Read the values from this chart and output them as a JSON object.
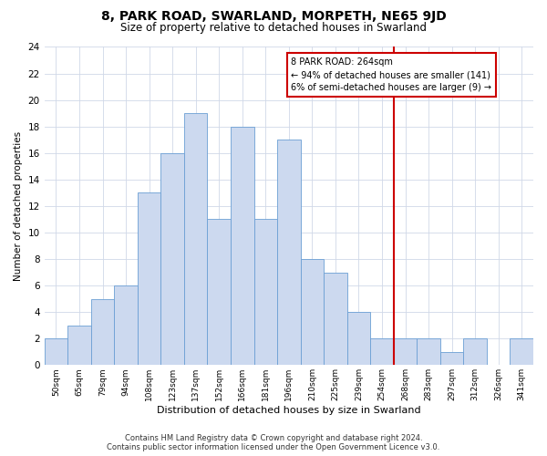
{
  "title": "8, PARK ROAD, SWARLAND, MORPETH, NE65 9JD",
  "subtitle": "Size of property relative to detached houses in Swarland",
  "xlabel": "Distribution of detached houses by size in Swarland",
  "ylabel": "Number of detached properties",
  "categories": [
    "50sqm",
    "65sqm",
    "79sqm",
    "94sqm",
    "108sqm",
    "123sqm",
    "137sqm",
    "152sqm",
    "166sqm",
    "181sqm",
    "196sqm",
    "210sqm",
    "225sqm",
    "239sqm",
    "254sqm",
    "268sqm",
    "283sqm",
    "297sqm",
    "312sqm",
    "326sqm",
    "341sqm"
  ],
  "bar_values": [
    2,
    3,
    5,
    6,
    13,
    16,
    19,
    11,
    18,
    11,
    17,
    8,
    7,
    4,
    2,
    2,
    2,
    1,
    2,
    0,
    2
  ],
  "bar_color": "#ccd9ef",
  "bar_edge_color": "#6b9fd4",
  "grid_color": "#d0d8e8",
  "background_color": "#ffffff",
  "annotation_text": "8 PARK ROAD: 264sqm\n← 94% of detached houses are smaller (141)\n6% of semi-detached houses are larger (9) →",
  "vline_color": "#cc0000",
  "annotation_box_edgecolor": "#cc0000",
  "ylim": [
    0,
    24
  ],
  "yticks": [
    0,
    2,
    4,
    6,
    8,
    10,
    12,
    14,
    16,
    18,
    20,
    22,
    24
  ],
  "footer_line1": "Contains HM Land Registry data © Crown copyright and database right 2024.",
  "footer_line2": "Contains public sector information licensed under the Open Government Licence v3.0."
}
